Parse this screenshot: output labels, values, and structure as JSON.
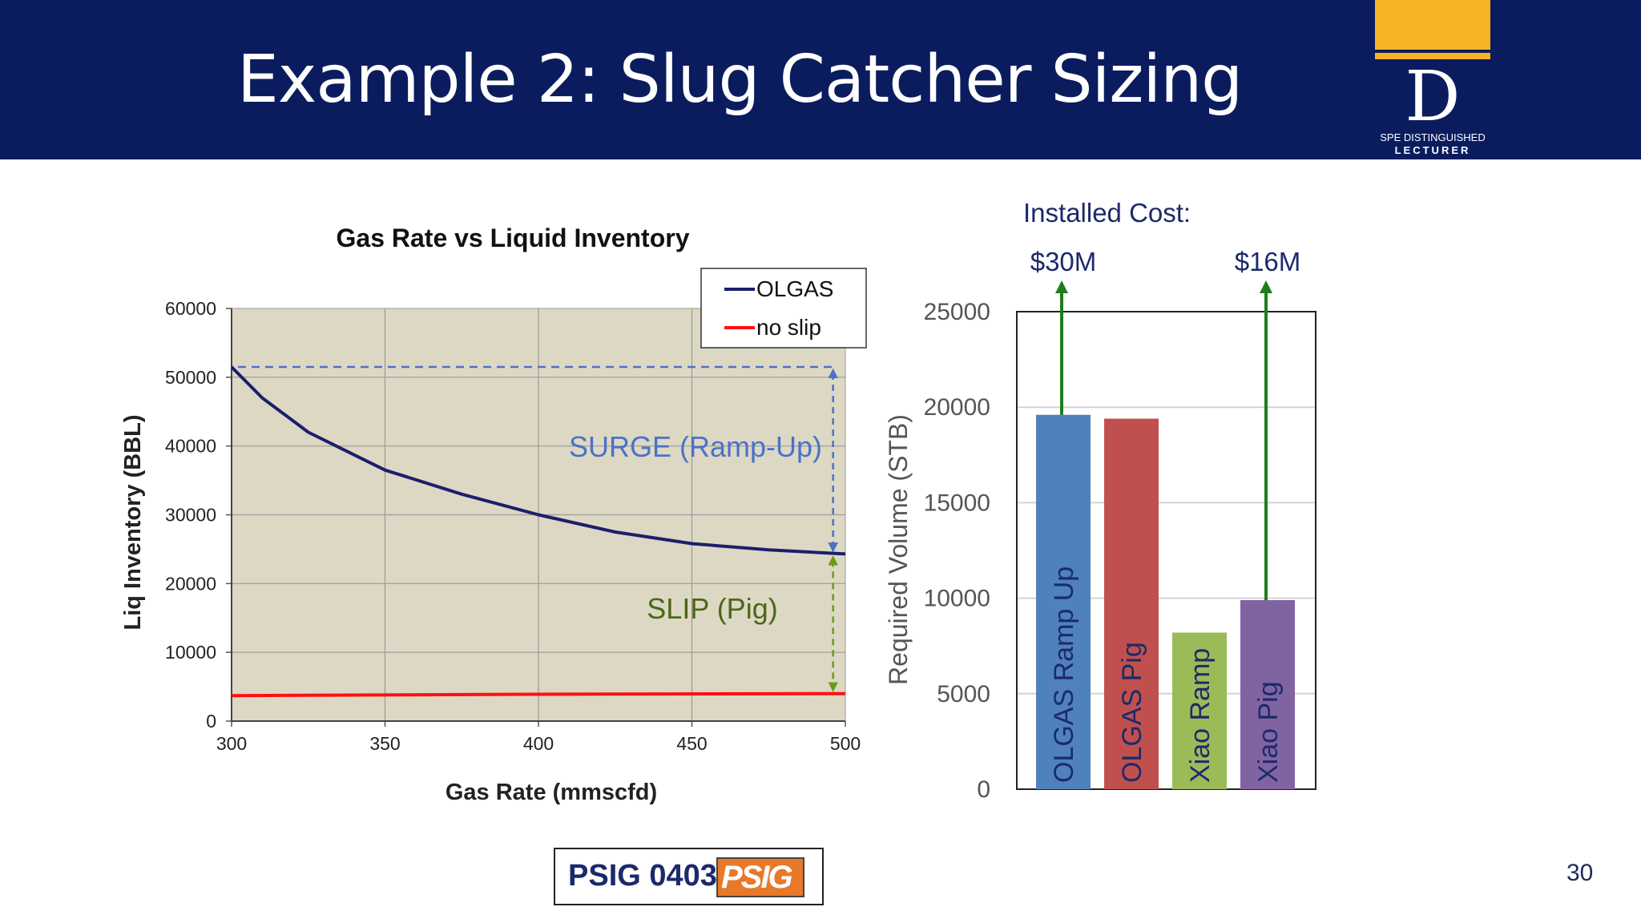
{
  "slide": {
    "title": "Example 2: Slug Catcher Sizing",
    "number": "30",
    "logo": {
      "line1": "SPE DISTINGUISHED",
      "line2": "LECTURER",
      "letter": "D"
    },
    "footer": {
      "ref": "PSIG 0403",
      "badge": "PSIG"
    }
  },
  "colors": {
    "header_bg": "#0b1c5e",
    "accent_gold": "#f6b425"
  },
  "chart_data": [
    {
      "type": "line",
      "title": "Gas Rate vs Liquid Inventory",
      "xlabel": "Gas Rate (mmscfd)",
      "ylabel": "Liq Inventory (BBL)",
      "xlim": [
        300,
        500
      ],
      "ylim": [
        0,
        60000
      ],
      "xticks": [
        300,
        350,
        400,
        450,
        500
      ],
      "yticks": [
        0,
        10000,
        20000,
        30000,
        40000,
        50000,
        60000
      ],
      "grid": true,
      "plot_background": "#ddd8c4",
      "legend": {
        "position": "top-right",
        "entries": [
          "OLGAS",
          "no slip"
        ]
      },
      "series": [
        {
          "name": "OLGAS",
          "color": "#1b1f6b",
          "x": [
            300,
            310,
            325,
            350,
            375,
            400,
            425,
            450,
            475,
            500
          ],
          "y": [
            51500,
            47000,
            42000,
            36500,
            33000,
            30000,
            27500,
            25800,
            24900,
            24300
          ]
        },
        {
          "name": "no slip",
          "color": "#ff1010",
          "x": [
            300,
            400,
            500
          ],
          "y": [
            3700,
            3900,
            4000
          ]
        }
      ],
      "annotations": [
        {
          "text": "SURGE (Ramp-Up)",
          "color": "#4a72c8",
          "arrow_x": 496,
          "from": 24300,
          "to": 51500,
          "ref_line_y": 51500
        },
        {
          "text": "SLIP (Pig)",
          "color": "#4a6818",
          "arrow_x": 496,
          "from": 4000,
          "to": 24300
        }
      ]
    },
    {
      "type": "bar",
      "ylabel": "Required Volume (STB)",
      "ylim": [
        0,
        25000
      ],
      "yticks": [
        0,
        5000,
        10000,
        15000,
        20000,
        25000
      ],
      "grid": true,
      "categories": [
        "OLGAS Ramp Up",
        "OLGAS Pig",
        "Xiao Ramp",
        "Xiao Pig"
      ],
      "values": [
        19600,
        19400,
        8200,
        9900
      ],
      "colors": [
        "#4f81bd",
        "#c0504d",
        "#9bbb59",
        "#8064a2"
      ],
      "label_colors": [
        "#1b2a6b",
        "#1b2a6b",
        "#1b2a6b",
        "#1b2a6b"
      ],
      "annotations": {
        "header": "Installed Cost:",
        "costs": [
          {
            "text": "$30M",
            "bar_index": 0
          },
          {
            "text": "$16M",
            "bar_index": 3
          }
        ],
        "arrow_color": "#1e7d1e"
      }
    }
  ]
}
